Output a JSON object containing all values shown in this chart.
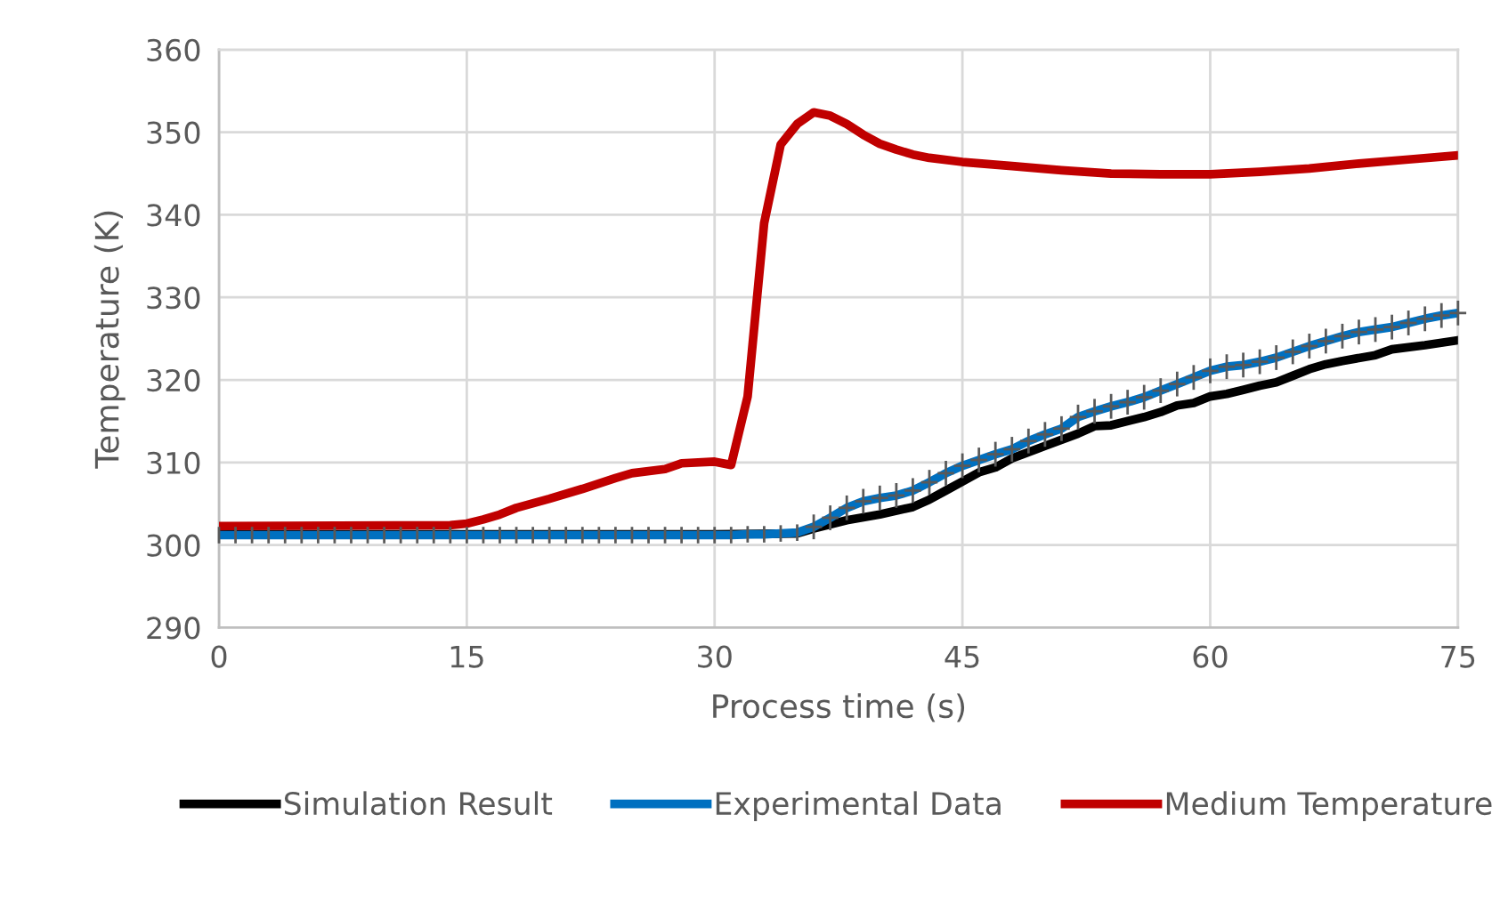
{
  "chart_data": {
    "type": "line",
    "xlabel": "Process time (s)",
    "ylabel": "Temperature (K)",
    "xlim": [
      0,
      75
    ],
    "xticks": [
      0,
      15,
      30,
      45,
      60,
      75
    ],
    "ylim": [
      290,
      360
    ],
    "yticks": [
      290,
      300,
      310,
      320,
      330,
      340,
      350,
      360
    ],
    "grid": true,
    "legend": "bottom",
    "marker": "none",
    "line_style": "solid",
    "series": [
      {
        "name": "Simulation Result",
        "color": "#000000",
        "x": [
          0,
          10,
          20,
          30,
          35,
          36,
          38,
          40,
          42,
          43,
          44,
          45,
          46,
          47,
          48,
          50,
          52,
          53,
          54,
          56,
          57,
          58,
          59,
          60,
          61,
          62,
          63,
          64,
          65,
          66,
          67,
          68,
          70,
          71,
          73,
          75
        ],
        "values": [
          301.3,
          301.3,
          301.3,
          301.3,
          301.4,
          302.0,
          303.0,
          303.7,
          304.6,
          305.5,
          306.6,
          307.7,
          308.8,
          309.4,
          310.5,
          312.0,
          313.5,
          314.4,
          314.5,
          315.5,
          316.1,
          316.9,
          317.2,
          318.0,
          318.3,
          318.8,
          319.3,
          319.7,
          320.5,
          321.3,
          321.9,
          322.3,
          323.0,
          323.7,
          324.2,
          324.8
        ]
      },
      {
        "name": "Experimental Data",
        "color": "#0070c0",
        "x": [
          0,
          1,
          2,
          3,
          4,
          5,
          6,
          7,
          8,
          9,
          10,
          11,
          12,
          13,
          14,
          15,
          16,
          17,
          18,
          19,
          20,
          21,
          22,
          23,
          24,
          25,
          26,
          27,
          28,
          29,
          30,
          31,
          32,
          33,
          34,
          35,
          36,
          37,
          38,
          39,
          40,
          41,
          42,
          43,
          44,
          45,
          46,
          47,
          48,
          49,
          50,
          51,
          52,
          53,
          54,
          55,
          56,
          57,
          58,
          59,
          60,
          61,
          62,
          63,
          64,
          65,
          66,
          67,
          68,
          69,
          70,
          71,
          72,
          73,
          74,
          75
        ],
        "values": [
          301.2,
          301.2,
          301.2,
          301.2,
          301.2,
          301.2,
          301.2,
          301.2,
          301.2,
          301.2,
          301.2,
          301.2,
          301.2,
          301.2,
          301.2,
          301.2,
          301.2,
          301.2,
          301.2,
          301.2,
          301.2,
          301.2,
          301.2,
          301.2,
          301.2,
          301.2,
          301.2,
          301.2,
          301.2,
          301.2,
          301.2,
          301.2,
          301.3,
          301.3,
          301.4,
          301.5,
          302.2,
          303.3,
          304.5,
          305.3,
          305.7,
          306.0,
          306.6,
          307.6,
          308.7,
          309.6,
          310.3,
          311.0,
          311.6,
          312.6,
          313.4,
          314.1,
          315.5,
          316.2,
          316.8,
          317.3,
          317.9,
          318.7,
          319.5,
          320.3,
          321.1,
          321.6,
          321.8,
          322.2,
          322.7,
          323.4,
          324.1,
          324.7,
          325.3,
          325.8,
          326.1,
          326.4,
          326.9,
          327.4,
          327.8,
          328.1
        ],
        "errors": [
          1,
          1,
          1,
          1,
          1,
          1,
          1,
          1,
          1,
          1,
          1,
          1,
          1,
          1,
          1,
          1,
          1,
          1,
          1,
          1,
          1,
          1,
          1,
          1,
          1,
          1,
          1,
          1,
          1,
          1,
          1,
          1,
          1,
          1,
          1,
          1,
          1.5,
          1.5,
          1.5,
          1.5,
          1.5,
          1.5,
          1.5,
          1.5,
          1.5,
          1.5,
          1.5,
          1.5,
          1.5,
          1.5,
          1.5,
          1.5,
          1.5,
          1.5,
          1.5,
          1.5,
          1.5,
          1.5,
          1.5,
          1.5,
          1.5,
          1.5,
          1.5,
          1.5,
          1.5,
          1.5,
          1.5,
          1.5,
          1.5,
          1.5,
          1.5,
          1.5,
          1.5,
          1.5,
          1.5,
          1.5
        ],
        "xerrors": [
          null,
          null,
          null,
          null,
          null,
          null,
          null,
          null,
          null,
          null,
          null,
          null,
          null,
          null,
          null,
          null,
          null,
          null,
          null,
          null,
          null,
          null,
          null,
          null,
          null,
          null,
          null,
          null,
          null,
          null,
          null,
          null,
          null,
          null,
          null,
          null,
          0.5,
          0.5,
          0.5,
          0.5,
          0.5,
          0.5,
          0.5,
          0.5,
          0.5,
          0.5,
          0.5,
          0.5,
          0.5,
          0.5,
          0.5,
          0.5,
          0.5,
          0.5,
          0.5,
          0.5,
          0.5,
          0.5,
          0.5,
          0.5,
          0.5,
          0.5,
          0.5,
          0.5,
          0.5,
          0.5,
          0.5,
          0.5,
          0.5,
          0.5,
          0.5,
          0.5,
          0.5,
          0.5,
          0.5,
          0.5
        ]
      },
      {
        "name": "Medium Temperature",
        "color": "#c00000",
        "x": [
          0,
          14,
          15,
          16,
          17,
          18,
          20,
          22,
          24,
          25,
          27,
          28,
          30,
          31,
          32,
          33,
          34,
          35,
          36,
          37,
          38,
          39,
          40,
          41,
          42,
          43,
          45,
          48,
          51,
          54,
          57,
          60,
          63,
          66,
          69,
          72,
          75
        ],
        "values": [
          302.3,
          302.4,
          302.6,
          303.1,
          303.7,
          304.5,
          305.6,
          306.8,
          308.1,
          308.7,
          309.2,
          309.9,
          310.1,
          309.7,
          318.0,
          339.0,
          348.5,
          351.0,
          352.4,
          352.0,
          351.0,
          349.7,
          348.6,
          347.9,
          347.3,
          346.9,
          346.4,
          345.9,
          345.4,
          345.0,
          344.9,
          344.9,
          345.2,
          345.6,
          346.2,
          346.7,
          347.2
        ]
      }
    ]
  }
}
